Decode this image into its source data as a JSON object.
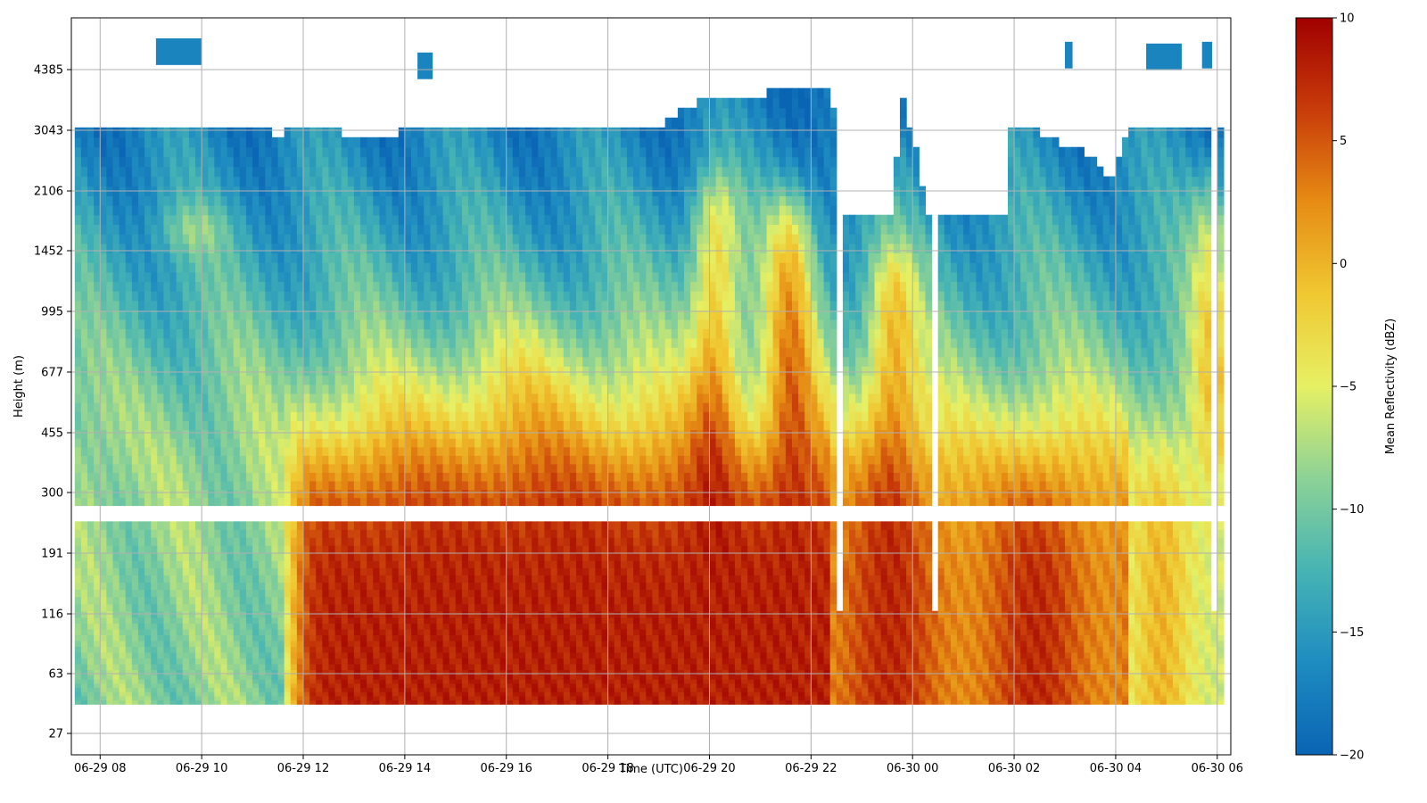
{
  "chart_data": {
    "type": "heatmap",
    "title": "",
    "xlabel": "Time (UTC)",
    "ylabel": "Height (m)",
    "x_tick_labels": [
      "06-29 08",
      "06-29 10",
      "06-29 12",
      "06-29 14",
      "06-29 16",
      "06-29 18",
      "06-29 20",
      "06-29 22",
      "06-30 00",
      "06-30 02",
      "06-30 04",
      "06-30 06"
    ],
    "y_tick_labels": [
      "27",
      "63",
      "116",
      "191",
      "300",
      "455",
      "677",
      "995",
      "1452",
      "2106",
      "3043",
      "4385"
    ],
    "xlim": [
      "06-29 07:26",
      "06-30 06:16"
    ],
    "y_scale": "log",
    "grid": true,
    "colorbar": {
      "label": "Mean Reflectivity (dBZ)",
      "range": [
        -20,
        10
      ],
      "ticks": [
        "10",
        "5",
        "0",
        "−5",
        "−10",
        "−15",
        "−20"
      ],
      "colormap": [
        "#0a64b4",
        "#1e8cc0",
        "#46b4b4",
        "#8cd296",
        "#e6f064",
        "#f0c832",
        "#e68c14",
        "#c83c0a",
        "#a00000"
      ]
    },
    "cloud_top_profile": {
      "time_hours": [
        7.6,
        9,
        10,
        11.5,
        12.5,
        13.5,
        14,
        15,
        16,
        17,
        18,
        19,
        20,
        21,
        22.4,
        22.6,
        23.6,
        23.8,
        24.3,
        25.1,
        26,
        26.5,
        27.5,
        27.9,
        28.3,
        28.7,
        29.5,
        30
      ],
      "top_m": [
        3043,
        3043,
        3043,
        3000,
        3043,
        2900,
        3043,
        3100,
        3043,
        3043,
        3043,
        3150,
        3700,
        3800,
        3900,
        1800,
        1850,
        3700,
        1800,
        1800,
        3100,
        3000,
        2600,
        2200,
        3100,
        3043,
        3043,
        3043
      ]
    },
    "reflectivity_regimes": [
      {
        "time_range": [
          "06-29 07:30",
          "06-29 11:40"
        ],
        "low_level_dbz": -9,
        "upper_level_dbz": -12
      },
      {
        "time_range": [
          "06-29 11:40",
          "06-29 22:30"
        ],
        "low_level_dbz": 9,
        "upper_level_dbz": -9
      },
      {
        "time_range": [
          "06-29 22:40",
          "06-30 04:30"
        ],
        "low_level_dbz": 6,
        "upper_level_dbz": -6
      },
      {
        "time_range": [
          "06-30 04:30",
          "06-30 06:10"
        ],
        "low_level_dbz": -5,
        "upper_level_dbz": -10
      }
    ]
  }
}
